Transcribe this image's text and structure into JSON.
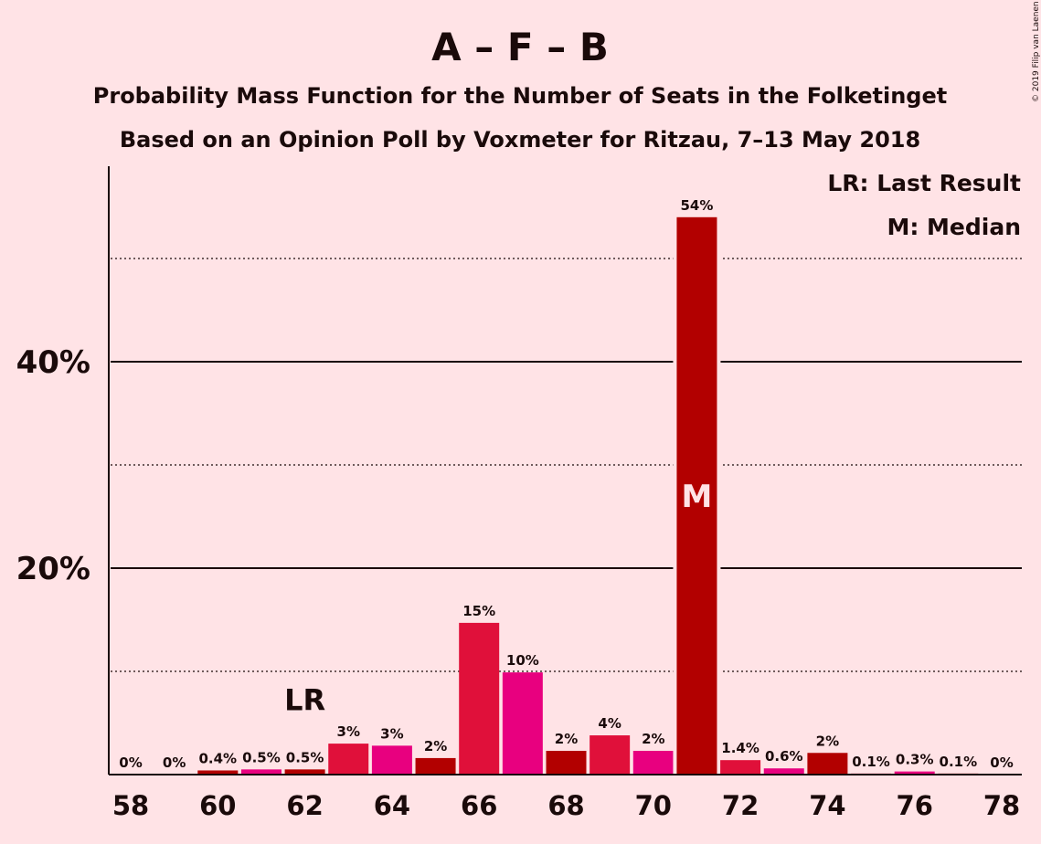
{
  "chart_data": {
    "type": "bar",
    "title": "A – F – B",
    "subtitle_1": "Probability Mass Function for the Number of Seats in the Folketinget",
    "subtitle_2": "Based on an Opinion Poll by Voxmeter for Ritzau, 7–13 May 2018",
    "copyright": "© 2019 Filip van Laenen",
    "x": [
      58,
      59,
      60,
      61,
      62,
      63,
      64,
      65,
      66,
      67,
      68,
      69,
      70,
      71,
      72,
      73,
      74,
      75,
      76,
      77,
      78
    ],
    "values": [
      0,
      0,
      0.4,
      0.5,
      0.5,
      3,
      2.8,
      1.6,
      14.7,
      9.9,
      2.3,
      3.8,
      2.3,
      54,
      1.4,
      0.6,
      2.1,
      0.1,
      0.3,
      0.1,
      0
    ],
    "data_labels": [
      "0%",
      "0%",
      "0.4%",
      "0.5%",
      "0.5%",
      "3%",
      "3%",
      "2%",
      "15%",
      "10%",
      "2%",
      "4%",
      "2%",
      "54%",
      "1.4%",
      "0.6%",
      "2%",
      "0.1%",
      "0.3%",
      "0.1%",
      "0%"
    ],
    "bar_colors": [
      "#B20000",
      "#E8007F",
      "#B20000",
      "#E8007F",
      "#B20000",
      "#E0103A",
      "#E8007F",
      "#B20000",
      "#E0103A",
      "#E8007F",
      "#B20000",
      "#E0103A",
      "#E8007F",
      "#B20000",
      "#E0103A",
      "#E8007F",
      "#B20000",
      "#E0103A",
      "#E8007F",
      "#B20000",
      "#E0103A"
    ],
    "x_tick_labels": [
      "58",
      "60",
      "62",
      "64",
      "66",
      "68",
      "70",
      "72",
      "74",
      "76",
      "78"
    ],
    "y_tick_labels": [
      "20%",
      "40%"
    ],
    "y_ticks": [
      20,
      40
    ],
    "y_minor_gridlines": [
      10,
      30,
      50
    ],
    "ylim": [
      0,
      59
    ],
    "grid": true,
    "last_result_seat": 62,
    "last_result_label": "LR",
    "median_seat": 71,
    "median_label": "M",
    "legend_position": "top-right",
    "legend": [
      "LR: Last Result",
      "M: Median"
    ]
  }
}
